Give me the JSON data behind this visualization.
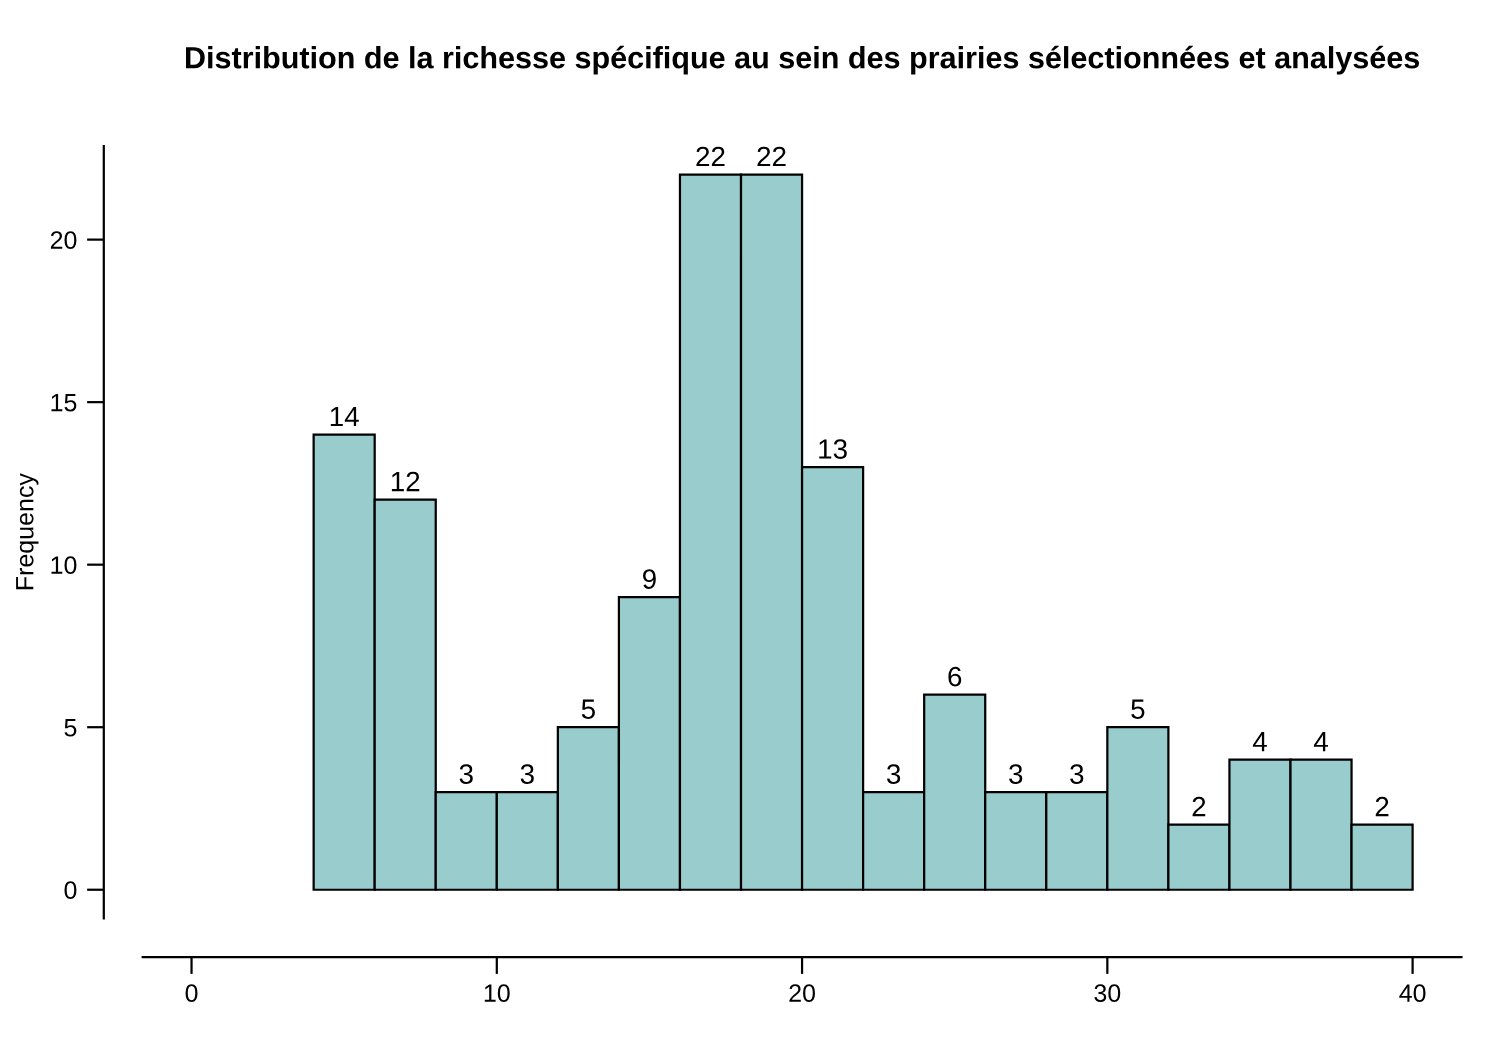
{
  "chart_data": {
    "type": "histogram",
    "title": "Distribution de la richesse spécifique au sein des prairies sélectionnées et analysées",
    "ylabel": "Frequency",
    "bins": [
      4,
      6,
      8,
      10,
      12,
      14,
      16,
      18,
      20,
      22,
      24,
      26,
      28,
      30,
      32,
      34,
      36,
      38,
      40
    ],
    "values": [
      14,
      12,
      3,
      3,
      5,
      9,
      22,
      22,
      13,
      3,
      6,
      3,
      3,
      5,
      2,
      4,
      4,
      2
    ],
    "color": "#99cccc",
    "data_labels": true,
    "grid": false,
    "legend": false,
    "xlim": [
      -1.6,
      41.6
    ],
    "xticks": [
      0,
      10,
      20,
      30,
      40
    ],
    "ylim": [
      -0.88,
      22.88
    ],
    "yticks": [
      0,
      5,
      10,
      15,
      20
    ]
  }
}
